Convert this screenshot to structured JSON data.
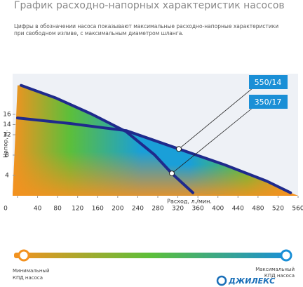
{
  "chart_data": {
    "type": "line",
    "title": "График расходно-напорных характеристик насосов",
    "subtitle": [
      "Цифры в обозначении насоса показывают максимальные расходно-напорные характеристики",
      "при свободном изливе, с максимальным диаметром шланга."
    ],
    "x_label": "Расход, л./мин.",
    "y_label": "Напор, м.",
    "xlim": [
      0,
      560
    ],
    "xticks": [
      0,
      40,
      80,
      120,
      160,
      200,
      240,
      280,
      320,
      360,
      400,
      440,
      480,
      520,
      560
    ],
    "ylim": [
      0,
      24
    ],
    "yticks": [
      4,
      8,
      12,
      14,
      16
    ],
    "series": [
      {
        "name": "550/14",
        "color": "#1f2a8c",
        "label_color": "#1a8fd6",
        "x": [
          0,
          105,
          217,
          322,
          413,
          497,
          545
        ],
        "values": [
          15.3,
          14.2,
          12.8,
          9.2,
          6.1,
          2.9,
          0.6
        ]
      },
      {
        "name": "350/17",
        "color": "#1f2a8c",
        "label_color": "#1a8fd6",
        "x": [
          7,
          77,
          147,
          217,
          273,
          308,
          350
        ],
        "values": [
          21.7,
          19.2,
          16.1,
          12.6,
          8.1,
          4.4,
          0.6
        ]
      }
    ]
  },
  "legend_bar": {
    "min_label": [
      "Минимальный",
      "КПД насоса"
    ],
    "max_label": [
      "Максимальный",
      "КПД насоса"
    ],
    "min_color": "#f39220",
    "max_color": "#1a8fd6"
  },
  "logo": "ДЖИЛЕКС"
}
